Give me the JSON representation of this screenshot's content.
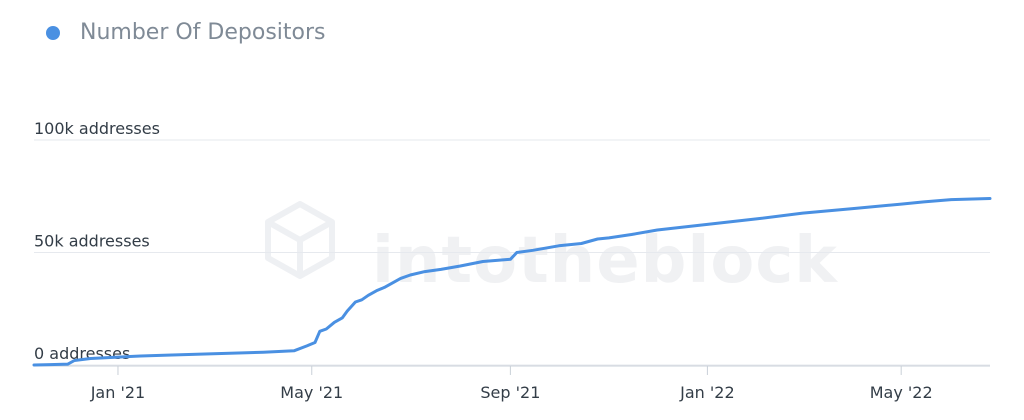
{
  "chart_data": {
    "type": "line",
    "title": "",
    "legend": {
      "position": "top-left",
      "entries": [
        "Number Of Depositors"
      ]
    },
    "colors": {
      "series": "#4a90e2",
      "grid": "#e6e9ee",
      "axis_text": "#333d47"
    },
    "watermark": "intotheblock",
    "grid": true,
    "y_tick_labels": [
      "0 addresses",
      "50k addresses",
      "100k addresses"
    ],
    "y_tick_values": [
      0,
      50000,
      100000
    ],
    "ylim": [
      0,
      100000
    ],
    "x_tick_labels": [
      "Jan '21",
      "May '21",
      "Sep '21",
      "Jan '22",
      "May '22"
    ],
    "x_tick_dates": [
      "2021-01-01",
      "2021-05-01",
      "2021-09-01",
      "2022-01-01",
      "2022-05-01"
    ],
    "xlim": [
      "2020-11-10",
      "2022-06-25"
    ],
    "series": [
      {
        "name": "Number Of Depositors",
        "x": [
          "2020-11-10",
          "2020-11-20",
          "2020-12-01",
          "2020-12-05",
          "2020-12-15",
          "2021-01-01",
          "2021-01-15",
          "2021-02-01",
          "2021-03-01",
          "2021-04-01",
          "2021-04-20",
          "2021-04-28",
          "2021-05-03",
          "2021-05-06",
          "2021-05-10",
          "2021-05-15",
          "2021-05-20",
          "2021-05-23",
          "2021-05-28",
          "2021-06-01",
          "2021-06-05",
          "2021-06-10",
          "2021-06-15",
          "2021-06-20",
          "2021-06-25",
          "2021-07-01",
          "2021-07-10",
          "2021-07-20",
          "2021-08-01",
          "2021-08-15",
          "2021-09-01",
          "2021-09-05",
          "2021-09-15",
          "2021-10-01",
          "2021-10-15",
          "2021-10-25",
          "2021-11-01",
          "2021-11-15",
          "2021-12-01",
          "2022-01-01",
          "2022-02-01",
          "2022-03-01",
          "2022-04-01",
          "2022-05-01",
          "2022-05-15",
          "2022-06-01",
          "2022-06-25"
        ],
        "y": [
          0,
          200,
          400,
          2000,
          2900,
          3500,
          4000,
          4400,
          5000,
          5700,
          6300,
          8500,
          10000,
          15000,
          16000,
          19000,
          21000,
          24000,
          28000,
          29000,
          31000,
          33000,
          34500,
          36500,
          38500,
          40000,
          41500,
          42500,
          44000,
          46000,
          47000,
          50000,
          51000,
          53000,
          54000,
          56000,
          56500,
          58000,
          60000,
          62500,
          65000,
          67500,
          69500,
          71500,
          72500,
          73500,
          74000
        ]
      }
    ]
  }
}
